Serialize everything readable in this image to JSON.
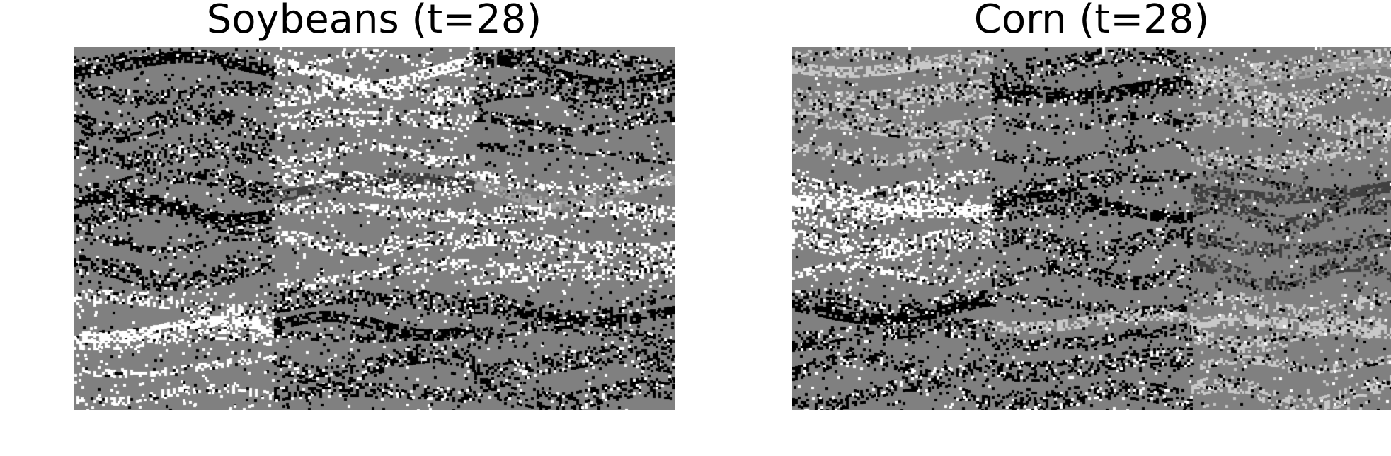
{
  "panels": {
    "left": {
      "title": "Soybeans (t=28)"
    },
    "right": {
      "title": "Corn (t=28)"
    }
  },
  "colors": {
    "background": "#808080",
    "black": "#000000",
    "white": "#ffffff",
    "light_gray": "#c8c8c8",
    "mid_light_gray": "#a0a0a0",
    "dark_gray": "#404040"
  },
  "tile_tints": {
    "left": [
      [
        "black",
        "white",
        "black"
      ],
      [
        "black",
        "white",
        "white"
      ],
      [
        "white",
        "black",
        "black"
      ]
    ],
    "right": [
      [
        "light_gray",
        "black",
        "light_gray"
      ],
      [
        "white",
        "black",
        "dark_gray"
      ],
      [
        "black",
        "black",
        "light_gray"
      ]
    ]
  },
  "bands": {
    "left": [
      [
        "black",
        "white",
        "black"
      ],
      [
        "black",
        "dark_gray",
        "mid_light_gray"
      ],
      [
        "white",
        "black",
        "black"
      ]
    ],
    "right": [
      [
        "light_gray",
        "black",
        "mid_light_gray"
      ],
      [
        "white",
        "black",
        "dark_gray"
      ],
      [
        "black",
        "light_gray",
        "light_gray"
      ]
    ]
  }
}
